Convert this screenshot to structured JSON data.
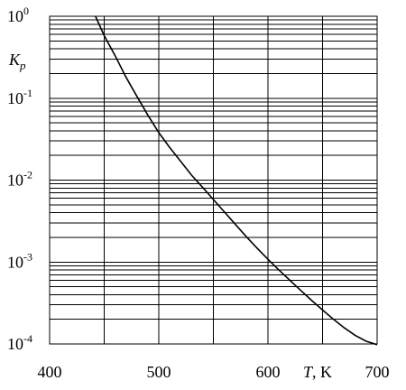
{
  "chart_data": {
    "type": "line",
    "title": "",
    "xlabel": {
      "symbol": "T",
      "unit": ", K"
    },
    "ylabel": {
      "symbol": "K",
      "subscript": "p"
    },
    "x_scale": "linear",
    "y_scale": "log",
    "xlim": [
      400,
      700
    ],
    "ylim": [
      0.0001,
      1
    ],
    "x_ticks": [
      {
        "label": "400",
        "value": 400
      },
      {
        "label": "500",
        "value": 500
      },
      {
        "label": "600",
        "value": 600
      },
      {
        "label": "700",
        "value": 700
      }
    ],
    "y_ticks": [
      {
        "base": "10",
        "exp": "-4",
        "value": 0.0001
      },
      {
        "base": "10",
        "exp": "-3",
        "value": 0.001
      },
      {
        "base": "10",
        "exp": "-2",
        "value": 0.01
      },
      {
        "base": "10",
        "exp": "-1",
        "value": 0.1
      },
      {
        "base": "10",
        "exp": "0",
        "value": 1
      }
    ],
    "grid": true,
    "series": [
      {
        "color": "#000000",
        "points": [
          {
            "x": 442,
            "y": 1.0
          },
          {
            "x": 450,
            "y": 0.58
          },
          {
            "x": 460,
            "y": 0.33
          },
          {
            "x": 470,
            "y": 0.18
          },
          {
            "x": 480,
            "y": 0.105
          },
          {
            "x": 490,
            "y": 0.062
          },
          {
            "x": 500,
            "y": 0.038
          },
          {
            "x": 510,
            "y": 0.025
          },
          {
            "x": 520,
            "y": 0.017
          },
          {
            "x": 530,
            "y": 0.0115
          },
          {
            "x": 540,
            "y": 0.0082
          },
          {
            "x": 550,
            "y": 0.0058
          },
          {
            "x": 560,
            "y": 0.0041
          },
          {
            "x": 570,
            "y": 0.0029
          },
          {
            "x": 580,
            "y": 0.00205
          },
          {
            "x": 590,
            "y": 0.00148
          },
          {
            "x": 600,
            "y": 0.00108
          },
          {
            "x": 610,
            "y": 0.0008
          },
          {
            "x": 620,
            "y": 0.0006
          },
          {
            "x": 630,
            "y": 0.00045
          },
          {
            "x": 640,
            "y": 0.00034
          },
          {
            "x": 650,
            "y": 0.00026
          },
          {
            "x": 660,
            "y": 0.0002
          },
          {
            "x": 670,
            "y": 0.000157
          },
          {
            "x": 680,
            "y": 0.000127
          },
          {
            "x": 690,
            "y": 0.000108
          },
          {
            "x": 700,
            "y": 9.8e-05
          }
        ]
      }
    ]
  }
}
